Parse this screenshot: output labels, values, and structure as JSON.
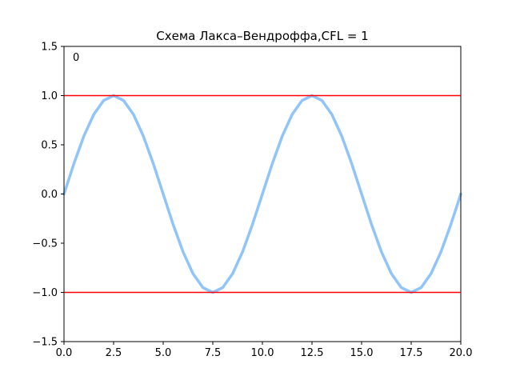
{
  "chart_data": {
    "type": "line",
    "title": "Схема Лакса–Вендроффа,CFL = 1",
    "xlabel": "",
    "ylabel": "",
    "xlim": [
      0.0,
      20.0
    ],
    "ylim": [
      -1.5,
      1.5
    ],
    "x_ticks": [
      0.0,
      2.5,
      5.0,
      7.5,
      10.0,
      12.5,
      15.0,
      17.5,
      20.0
    ],
    "x_tick_labels": [
      "0.0",
      "2.5",
      "5.0",
      "7.5",
      "10.0",
      "12.5",
      "15.0",
      "17.5",
      "20.0"
    ],
    "y_ticks": [
      -1.5,
      -1.0,
      -0.5,
      0.0,
      0.5,
      1.0,
      1.5
    ],
    "y_tick_labels": [
      "−1.5",
      "−1.0",
      "−0.5",
      "0.0",
      "0.5",
      "1.0",
      "1.5"
    ],
    "grid": false,
    "annotation": "0",
    "series": [
      {
        "color": "#90c4fa",
        "x": [
          0.0,
          0.5,
          1.0,
          1.5,
          2.0,
          2.5,
          3.0,
          3.5,
          4.0,
          4.5,
          5.0,
          5.5,
          6.0,
          6.5,
          7.0,
          7.5,
          8.0,
          8.5,
          9.0,
          9.5,
          10.0,
          10.5,
          11.0,
          11.5,
          12.0,
          12.5,
          13.0,
          13.5,
          14.0,
          14.5,
          15.0,
          15.5,
          16.0,
          16.5,
          17.0,
          17.5,
          18.0,
          18.5,
          19.0,
          19.5,
          20.0
        ],
        "y": [
          0.0,
          0.309,
          0.588,
          0.809,
          0.951,
          1.0,
          0.951,
          0.809,
          0.588,
          0.309,
          0.0,
          -0.309,
          -0.588,
          -0.809,
          -0.951,
          -1.0,
          -0.951,
          -0.809,
          -0.588,
          -0.309,
          0.0,
          0.309,
          0.588,
          0.809,
          0.951,
          1.0,
          0.951,
          0.809,
          0.588,
          0.309,
          0.0,
          -0.309,
          -0.588,
          -0.809,
          -0.951,
          -1.0,
          -0.951,
          -0.809,
          -0.588,
          -0.309,
          0.0
        ]
      }
    ],
    "reference_lines": [
      {
        "y": 1.0,
        "color": "#ff0000"
      },
      {
        "y": -1.0,
        "color": "#ff0000"
      }
    ]
  }
}
